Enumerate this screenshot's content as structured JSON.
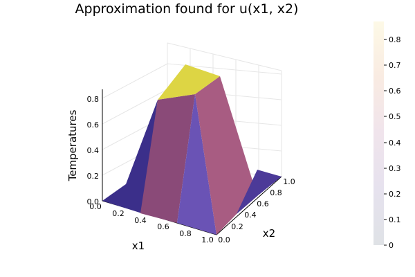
{
  "chart_data": {
    "type": "surface",
    "title": "Approximation found for u(x1, x2)",
    "xlabel": "x1",
    "ylabel": "x2",
    "zlabel": "Temperatures",
    "x": [
      0.0,
      0.25,
      0.5,
      0.75,
      1.0
    ],
    "y": [
      0.0,
      0.25,
      0.5,
      0.75,
      1.0
    ],
    "z_surface_description_points": [
      {
        "x1": 0.25,
        "x2": 0.5,
        "u": 0.78
      },
      {
        "x1": 0.5,
        "x2": 0.5,
        "u": 0.86
      },
      {
        "x1": 0.5,
        "x2": 0.75,
        "u": 0.87
      },
      {
        "x1": 0.25,
        "x2": 0.75,
        "u": 0.85
      }
    ],
    "x_ticks": [
      "0.0",
      "0.2",
      "0.4",
      "0.6",
      "0.8",
      "1.0"
    ],
    "y_ticks": [
      "0.0",
      "0.2",
      "0.4",
      "0.6",
      "0.8",
      "1.0"
    ],
    "z_ticks": [
      "0.0",
      "0.2",
      "0.4",
      "0.6",
      "0.8"
    ],
    "xlim": [
      0,
      1
    ],
    "ylim": [
      0,
      1
    ],
    "zlim": [
      0,
      0.87
    ],
    "grid": true,
    "colorbar": {
      "ticks": [
        "0",
        "0.1",
        "0.2",
        "0.3",
        "0.4",
        "0.5",
        "0.6",
        "0.7",
        "0.8"
      ],
      "range": [
        0,
        0.87
      ]
    },
    "colors": {
      "low": "#3b2f8a",
      "mid_purple": "#6a53b5",
      "mid_mauve": "#8a4a78",
      "pink": "#a85c82",
      "peak": "#ddd544"
    }
  }
}
